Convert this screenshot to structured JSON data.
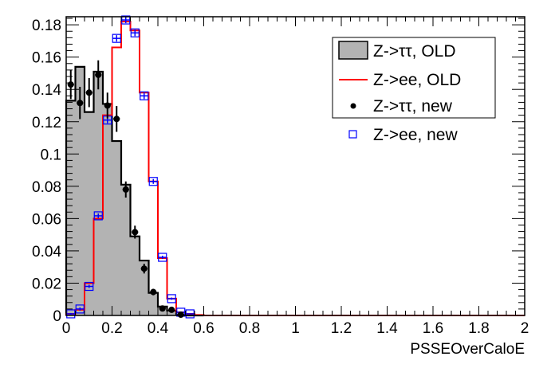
{
  "chart_data": {
    "type": "bar",
    "title": "",
    "xlabel": "PSSEOverCaloE",
    "ylabel": "",
    "xlim": [
      0,
      2
    ],
    "ylim": [
      0,
      0.185
    ],
    "bin_width": 0.04,
    "x_ticks": [
      "0",
      "0.2",
      "0.4",
      "0.6",
      "0.8",
      "1",
      "1.2",
      "1.4",
      "1.6",
      "1.8",
      "2"
    ],
    "y_ticks": [
      "0",
      "0.02",
      "0.04",
      "0.06",
      "0.08",
      "0.1",
      "0.12",
      "0.14",
      "0.16",
      "0.18"
    ],
    "grid": false,
    "legend_position": "top-right",
    "series": [
      {
        "name": "Z->ττ, OLD",
        "style": "filled-histogram",
        "color": "#b3b3b3",
        "edge": "#000000",
        "values": [
          0.133,
          0.154,
          0.126,
          0.151,
          0.131,
          0.108,
          0.081,
          0.049,
          0.034,
          0.014,
          0.0055,
          0.003,
          0.0005,
          0,
          0
        ]
      },
      {
        "name": "Z->ee, OLD",
        "style": "line-histogram",
        "color": "#ff0000",
        "values": [
          0.001,
          0.0035,
          0.02,
          0.06,
          0.124,
          0.166,
          0.182,
          0.1765,
          0.138,
          0.083,
          0.0355,
          0.0104,
          0.002,
          0.001,
          0.0003
        ]
      },
      {
        "name": "Z->ττ, new",
        "style": "points",
        "color": "#000000",
        "values": [
          0.143,
          0.1316,
          0.138,
          0.149,
          0.13,
          0.1217,
          0.078,
          0.0516,
          0.029,
          0.0145,
          0.0043,
          0.0035,
          0.0005
        ],
        "errors": [
          0.009,
          0.01,
          0.009,
          0.009,
          0.008,
          0.008,
          0.005,
          0.004,
          0.003,
          0.002,
          0.001,
          0.001,
          0.0005
        ]
      },
      {
        "name": "Z->ee, new",
        "style": "open-squares",
        "color": "#0000ff",
        "values": [
          0.001,
          0.004,
          0.018,
          0.0617,
          0.121,
          0.1716,
          0.183,
          0.175,
          0.136,
          0.083,
          0.036,
          0.0104,
          0.002,
          0.001
        ],
        "errors": [
          0.0005,
          0.001,
          0.001,
          0.0015,
          0.002,
          0.002,
          0.002,
          0.002,
          0.002,
          0.0015,
          0.001,
          0.0007,
          0.0003,
          0.0002
        ]
      }
    ]
  }
}
